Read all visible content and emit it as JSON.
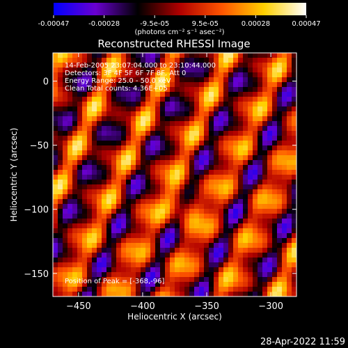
{
  "colorbar": {
    "ticks": [
      "-0.00047",
      "-0.00028",
      "-9.5e-05",
      "9.5e-05",
      "0.00028",
      "0.00047"
    ],
    "units": "(photons cm⁻² s⁻¹ asec⁻²)",
    "stops": [
      "#0000ff",
      "#6a00d0",
      "#000000",
      "#b00000",
      "#ff5500",
      "#ffd000",
      "#ffffff"
    ]
  },
  "chart_data": {
    "type": "heatmap",
    "title": "Reconstructed RHESSI Image",
    "xlabel": "Heliocentric X (arcsec)",
    "ylabel": "Heliocentric Y (arcsec)",
    "xlim": [
      -470,
      -280
    ],
    "ylim": [
      -168,
      22
    ],
    "xticks": [
      -450,
      -400,
      -350,
      -300
    ],
    "yticks": [
      0,
      -50,
      -100,
      -150
    ],
    "value_range": [
      -0.00047,
      0.00047
    ],
    "annotations": {
      "time": "14-Feb-2005 23:07:04.000 to 23:10:44.000",
      "detectors": "Detectors: 3F 4F 5F 6F 7F 8F, Att 0",
      "energy": "Energy Range: 25.0 - 50.0 keV",
      "clean": "Clean    Total counts: 4.36E+05",
      "peak": "Position of Peak = [-368,-96]"
    },
    "peak": {
      "x": -368,
      "y": -96
    }
  },
  "footer": {
    "date": "28-Apr-2022 11:59"
  }
}
